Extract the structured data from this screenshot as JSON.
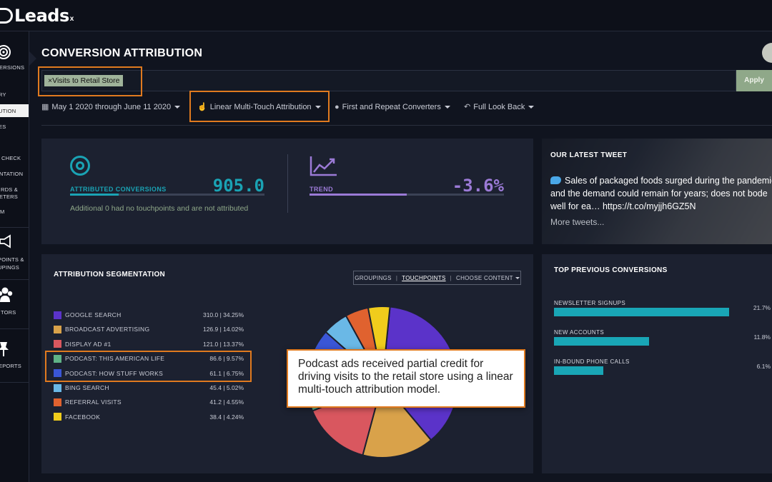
{
  "app": {
    "logo_text": "Leads",
    "logo_suffix": "x"
  },
  "sidebar": {
    "items": [
      {
        "label": "ERSIONS"
      },
      {
        "label": "RY"
      },
      {
        "label": "UTION"
      },
      {
        "label": "ES"
      },
      {
        "label": "CHECK"
      },
      {
        "label": "NTATION"
      },
      {
        "label": "RDS &"
      },
      {
        "label": "ETERS"
      },
      {
        "label": "M"
      },
      {
        "label": "POINTS &"
      },
      {
        "label": "UPINGS"
      },
      {
        "label": "TORS"
      },
      {
        "label": "EPORTS"
      }
    ]
  },
  "header": {
    "title": "CONVERSION ATTRIBUTION"
  },
  "filter": {
    "chip": "×Visits to Retail Store",
    "apply_label": "Apply"
  },
  "controls": {
    "date_range": "May 1 2020 through June 11 2020",
    "model": "Linear Multi-Touch Attribution",
    "converters": "First and Repeat Converters",
    "lookback": "Full Look Back"
  },
  "kpis": {
    "attributed": {
      "label": "ATTRIBUTED CONVERSIONS",
      "value": "905.0",
      "bar_fill": 0.5
    },
    "trend": {
      "label": "TREND",
      "value": "-3.6%",
      "bar_fill": 0.5
    },
    "note": "Additional 0 had no touchpoints and are not attributed",
    "colors": {
      "attributed": "#1aa3b4",
      "trend": "#9b7ad6"
    }
  },
  "tweet": {
    "title": "OUR LATEST TWEET",
    "text": "Sales of packaged foods surged during the pandemic and the demand could remain for years; does not bode well for ea… https://t.co/myjjh6GZ5N",
    "more": "More tweets..."
  },
  "segmentation": {
    "title": "ATTRIBUTION SEGMENTATION",
    "tabs": {
      "groupings": "GROUPINGS",
      "touchpoints": "TOUCHPOINTS",
      "choose": "CHOOSE CONTENT"
    },
    "callout": "Podcast ads received partial credit for driving visits to the retail store using a linear multi-touch attribution model."
  },
  "chart_data": {
    "type": "pie",
    "categories": [
      "GOOGLE SEARCH",
      "BROADCAST ADVERTISING",
      "DISPLAY AD #1",
      "PODCAST: THIS AMERICAN LIFE",
      "PODCAST: HOW STUFF WORKS",
      "BING SEARCH",
      "REFERRAL VISITS",
      "FACEBOOK"
    ],
    "values": [
      310.0,
      126.9,
      121.0,
      86.6,
      61.1,
      45.4,
      41.2,
      38.4
    ],
    "labels": [
      "310.0 | 34.25%",
      "126.9 | 14.02%",
      "121.0 | 13.37%",
      "86.6 | 9.57%",
      "61.1 | 6.75%",
      "45.4 | 5.02%",
      "41.2 | 4.55%",
      "38.4 | 4.24%"
    ],
    "colors": [
      "#5b33c9",
      "#d9a24a",
      "#d9575f",
      "#5fb286",
      "#3a56d6",
      "#6ab8e6",
      "#e0622f",
      "#f0cc1c"
    ],
    "legend": "left"
  },
  "previous": {
    "title": "TOP PREVIOUS CONVERSIONS",
    "items": [
      {
        "label": "NEWSLETTER SIGNUPS",
        "pct": "21.7%",
        "value": 21.7
      },
      {
        "label": "NEW ACCOUNTS",
        "pct": "11.8%",
        "value": 11.8
      },
      {
        "label": "IN-BOUND PHONE CALLS",
        "pct": "6.1%",
        "value": 6.1
      }
    ]
  }
}
